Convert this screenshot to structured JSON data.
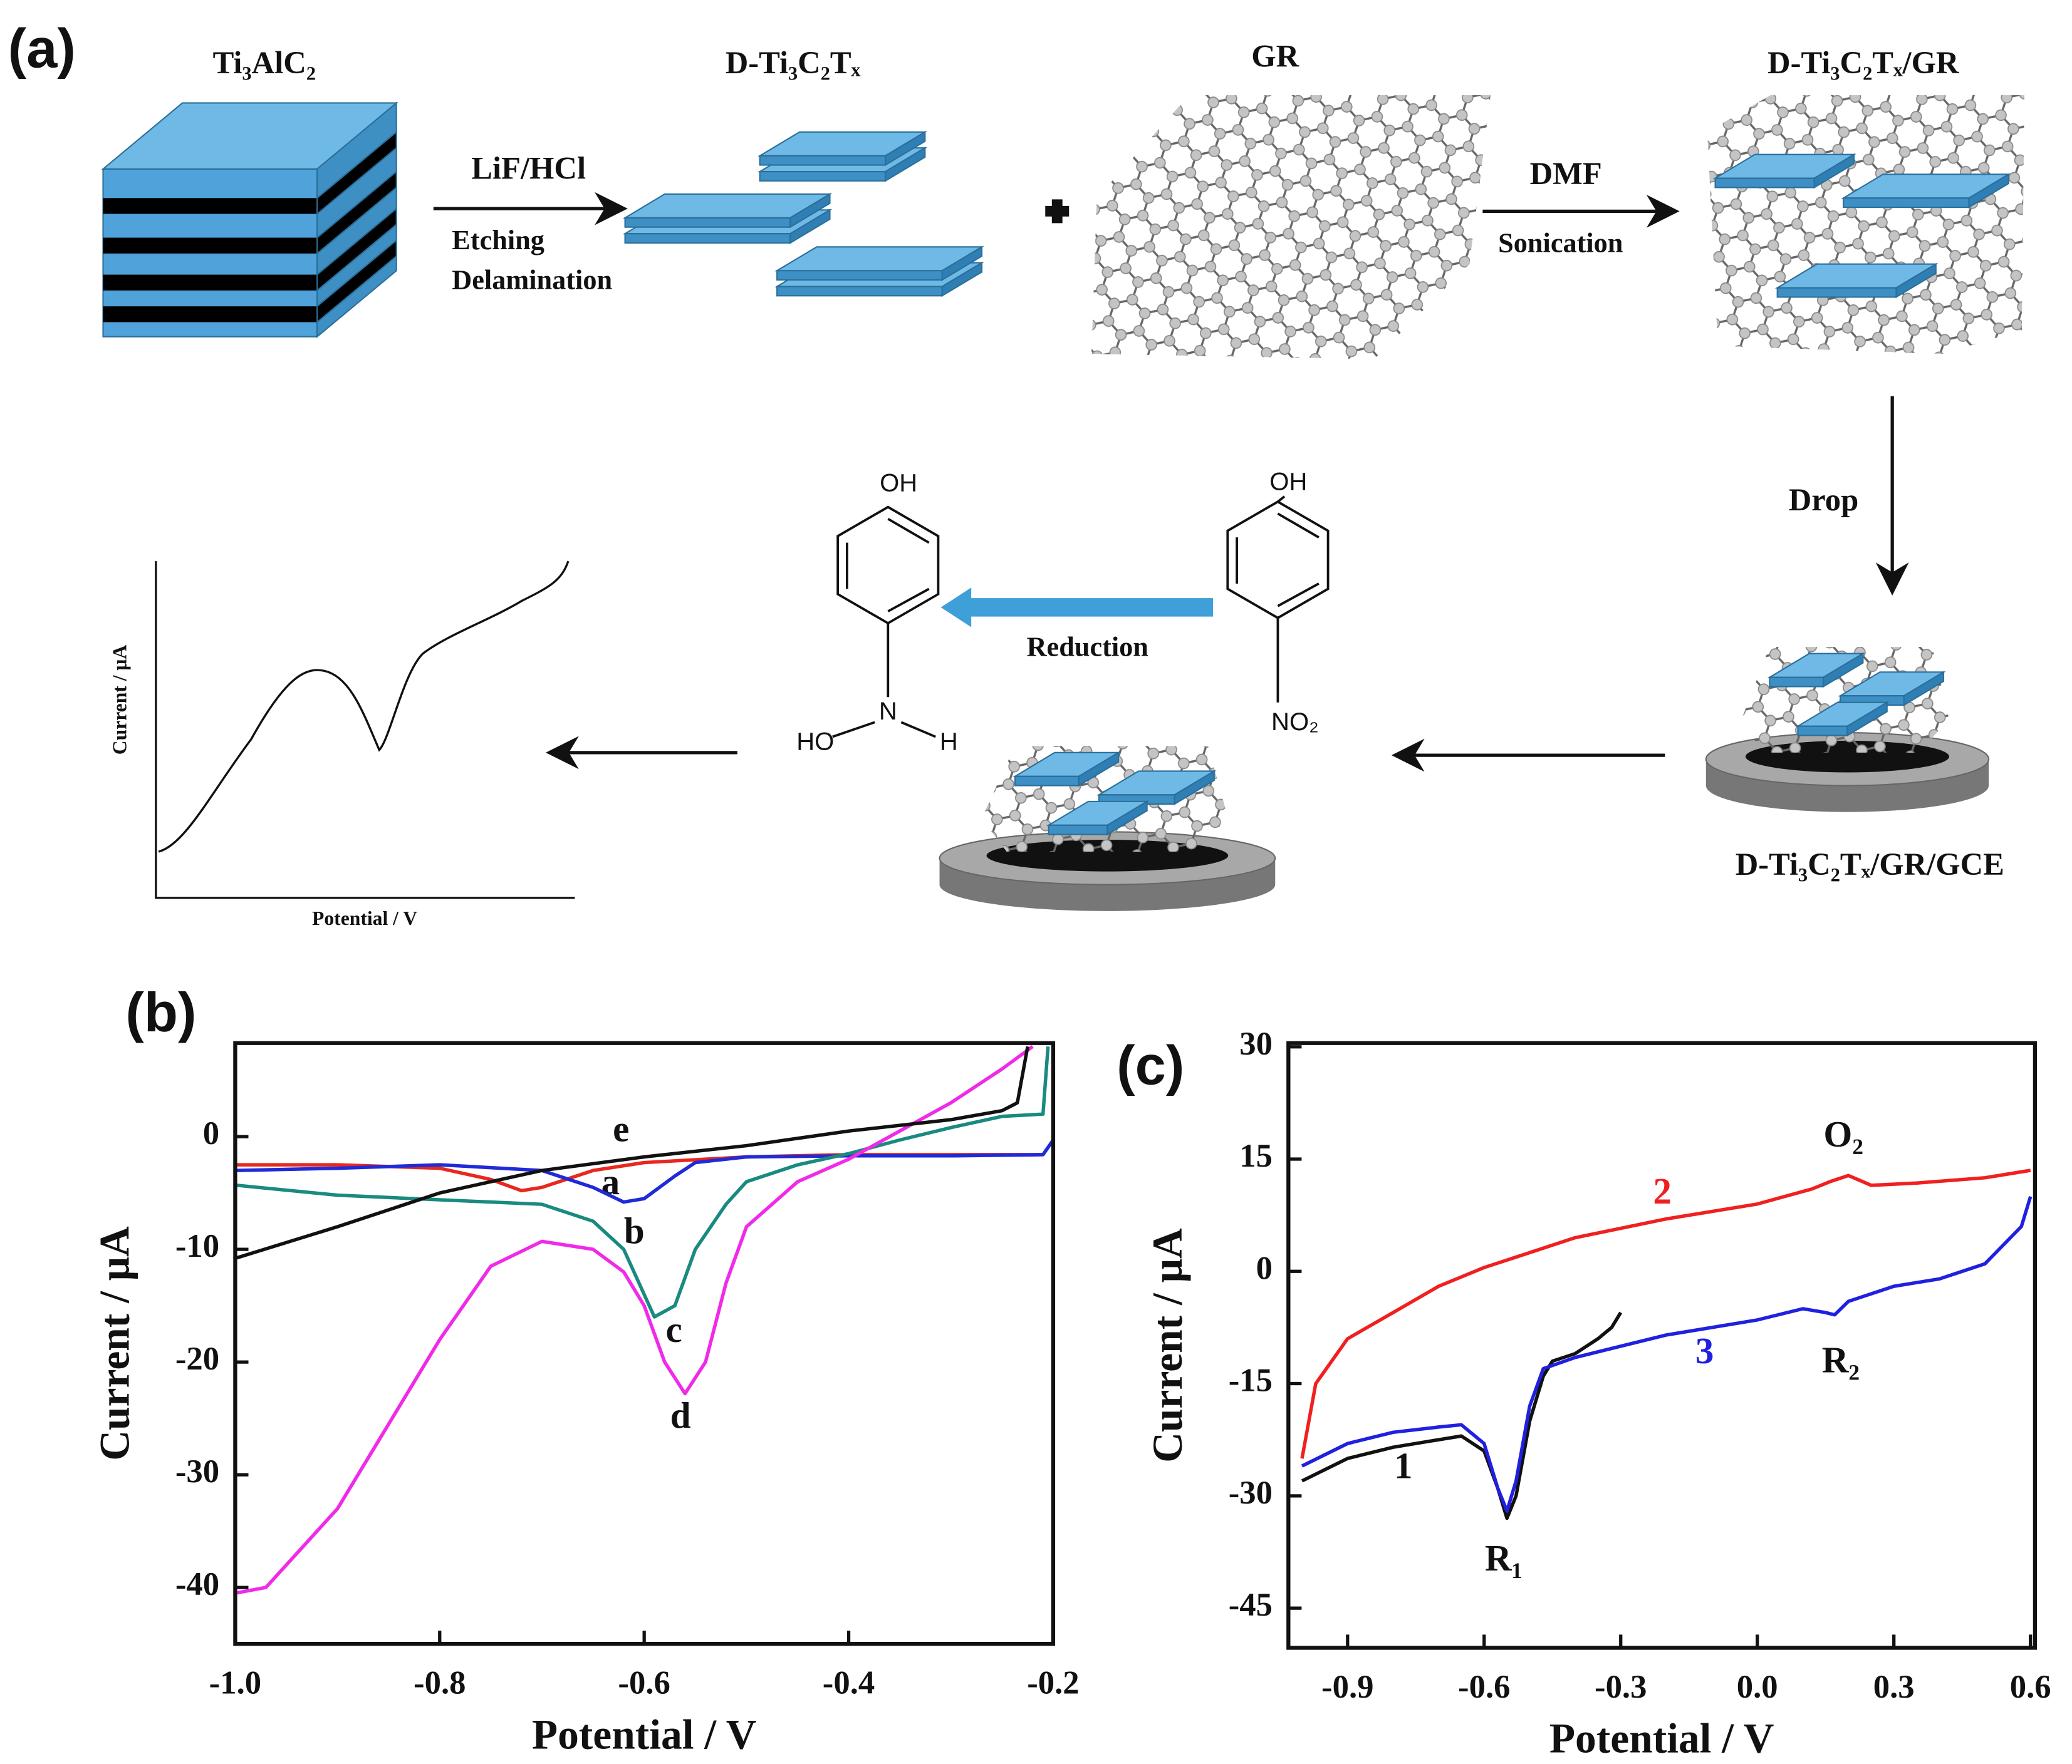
{
  "panel_a": {
    "panel_label": "(a)",
    "block_title": "Ti₃AlC₂",
    "etched_title": "D-Ti₃C₂Tₓ",
    "graphene_title": "GR",
    "composite_title": "D-Ti₃C₂Tₓ/GR",
    "electrode_title": "D-Ti₃C₂Tₓ/GR/GCE",
    "step1_reagent": "LiF/HCl",
    "step1_notes": [
      "Etching",
      "Delamination"
    ],
    "step2_solvent": "DMF",
    "step2_note": "Sonication",
    "step3": "Drop",
    "reaction": "Reduction",
    "reactant": {
      "top": "OH",
      "bottom": "NO₂"
    },
    "product": {
      "top": "OH",
      "center": "N",
      "left": "HO",
      "right": "H"
    },
    "inset": {
      "ylabel": "Current / μA",
      "xlabel": "Potential / V"
    }
  },
  "chart_data": [
    {
      "type": "line",
      "panel_label": "(b)",
      "xlabel": "Potential / V",
      "ylabel": "Current / μA",
      "xlim": [
        -1.0,
        -0.2
      ],
      "ylim": [
        -45,
        8.3
      ],
      "xticks": [
        {
          "value": -1,
          "label": "-1.0"
        },
        -0.8,
        -0.6,
        -0.4,
        -0.2
      ],
      "yticks": [
        0,
        -10,
        -20,
        -30,
        -40
      ],
      "series": [
        {
          "name": "a",
          "color": "#e8281e",
          "x": [
            -1.0,
            -0.9,
            -0.8,
            -0.75,
            -0.72,
            -0.7,
            -0.65,
            -0.6,
            -0.5,
            -0.4,
            -0.3,
            -0.21
          ],
          "values": [
            -2.5,
            -2.5,
            -2.8,
            -3.8,
            -4.8,
            -4.5,
            -3,
            -2.3,
            -1.8,
            -1.6,
            -1.6,
            -1.6
          ]
        },
        {
          "name": "b",
          "color": "#1f2ad8",
          "x": [
            -1.0,
            -0.9,
            -0.8,
            -0.7,
            -0.65,
            -0.62,
            -0.6,
            -0.57,
            -0.55,
            -0.5,
            -0.4,
            -0.3,
            -0.21,
            -0.2
          ],
          "values": [
            -3,
            -2.8,
            -2.5,
            -3,
            -4.5,
            -5.8,
            -5.5,
            -3.5,
            -2.3,
            -1.8,
            -1.7,
            -1.7,
            -1.6,
            -0.3
          ]
        },
        {
          "name": "c",
          "color": "#1a8a80",
          "x": [
            -1.0,
            -0.9,
            -0.8,
            -0.7,
            -0.65,
            -0.62,
            -0.6,
            -0.59,
            -0.57,
            -0.55,
            -0.52,
            -0.5,
            -0.45,
            -0.4,
            -0.35,
            -0.3,
            -0.25,
            -0.21,
            -0.205
          ],
          "values": [
            -4.3,
            -5.2,
            -5.6,
            -6,
            -7.5,
            -10,
            -14,
            -16,
            -15,
            -10,
            -6,
            -4,
            -2.5,
            -1.5,
            -0.3,
            0.8,
            1.8,
            2,
            8
          ]
        },
        {
          "name": "d",
          "color": "#f02ae8",
          "x": [
            -1.0,
            -0.97,
            -0.9,
            -0.8,
            -0.75,
            -0.7,
            -0.65,
            -0.62,
            -0.6,
            -0.58,
            -0.56,
            -0.54,
            -0.52,
            -0.5,
            -0.45,
            -0.4,
            -0.35,
            -0.3,
            -0.25,
            -0.22
          ],
          "values": [
            -40.5,
            -40,
            -33,
            -18,
            -11.5,
            -9.3,
            -10,
            -12,
            -15,
            -20,
            -22.8,
            -20,
            -13,
            -8,
            -4,
            -2,
            0.5,
            3,
            6,
            8
          ]
        },
        {
          "name": "e",
          "color": "#111111",
          "x": [
            -1.0,
            -0.9,
            -0.8,
            -0.7,
            -0.6,
            -0.5,
            -0.4,
            -0.3,
            -0.25,
            -0.235,
            -0.225
          ],
          "values": [
            -10.8,
            -8,
            -5,
            -3,
            -1.8,
            -0.8,
            0.5,
            1.5,
            2.3,
            3,
            8
          ]
        }
      ]
    },
    {
      "type": "line",
      "panel_label": "(c)",
      "xlabel": "Potential / V",
      "ylabel": "Current / μA",
      "xlim": [
        -1.03,
        0.61
      ],
      "ylim": [
        -50.3,
        30.5
      ],
      "xticks": [
        -0.9,
        -0.6,
        -0.3,
        {
          "value": 0,
          "label": "0.0"
        },
        0.3,
        0.6
      ],
      "yticks": [
        30,
        15,
        0,
        -15,
        -30,
        -45
      ],
      "annotations": [
        "O₂",
        "R₁",
        "R₂"
      ],
      "series": [
        {
          "name": "1",
          "color": "#111111",
          "x": [
            -1.0,
            -0.9,
            -0.8,
            -0.7,
            -0.65,
            -0.6,
            -0.57,
            -0.55,
            -0.53,
            -0.5,
            -0.47,
            -0.45,
            -0.4,
            -0.35,
            -0.32,
            -0.3
          ],
          "values": [
            -28,
            -25,
            -23.5,
            -22.5,
            -22,
            -24,
            -29,
            -33,
            -30,
            -20,
            -14,
            -12,
            -11,
            -9,
            -7.5,
            -5.5
          ]
        },
        {
          "name": "2",
          "color": "#f02020",
          "x": [
            -1.0,
            -0.97,
            -0.9,
            -0.8,
            -0.7,
            -0.6,
            -0.5,
            -0.4,
            -0.2,
            0,
            0.12,
            0.16,
            0.2,
            0.25,
            0.35,
            0.5,
            0.6
          ],
          "values": [
            -25,
            -15,
            -9,
            -5.5,
            -2,
            0.5,
            2.5,
            4.5,
            7,
            9,
            11,
            12,
            12.8,
            11.5,
            11.8,
            12.5,
            13.5
          ]
        },
        {
          "name": "3",
          "color": "#2020e0",
          "x": [
            -1.0,
            -0.9,
            -0.8,
            -0.7,
            -0.65,
            -0.6,
            -0.57,
            -0.55,
            -0.53,
            -0.5,
            -0.47,
            -0.4,
            -0.2,
            0,
            0.1,
            0.15,
            0.17,
            0.2,
            0.3,
            0.4,
            0.5,
            0.58,
            0.6
          ],
          "values": [
            -26,
            -23,
            -21.5,
            -20.8,
            -20.5,
            -23,
            -29,
            -32,
            -28,
            -18,
            -13,
            -11.5,
            -8.5,
            -6.5,
            -5,
            -5.5,
            -5.8,
            -4,
            -2,
            -1,
            1,
            6,
            10
          ]
        }
      ]
    }
  ]
}
